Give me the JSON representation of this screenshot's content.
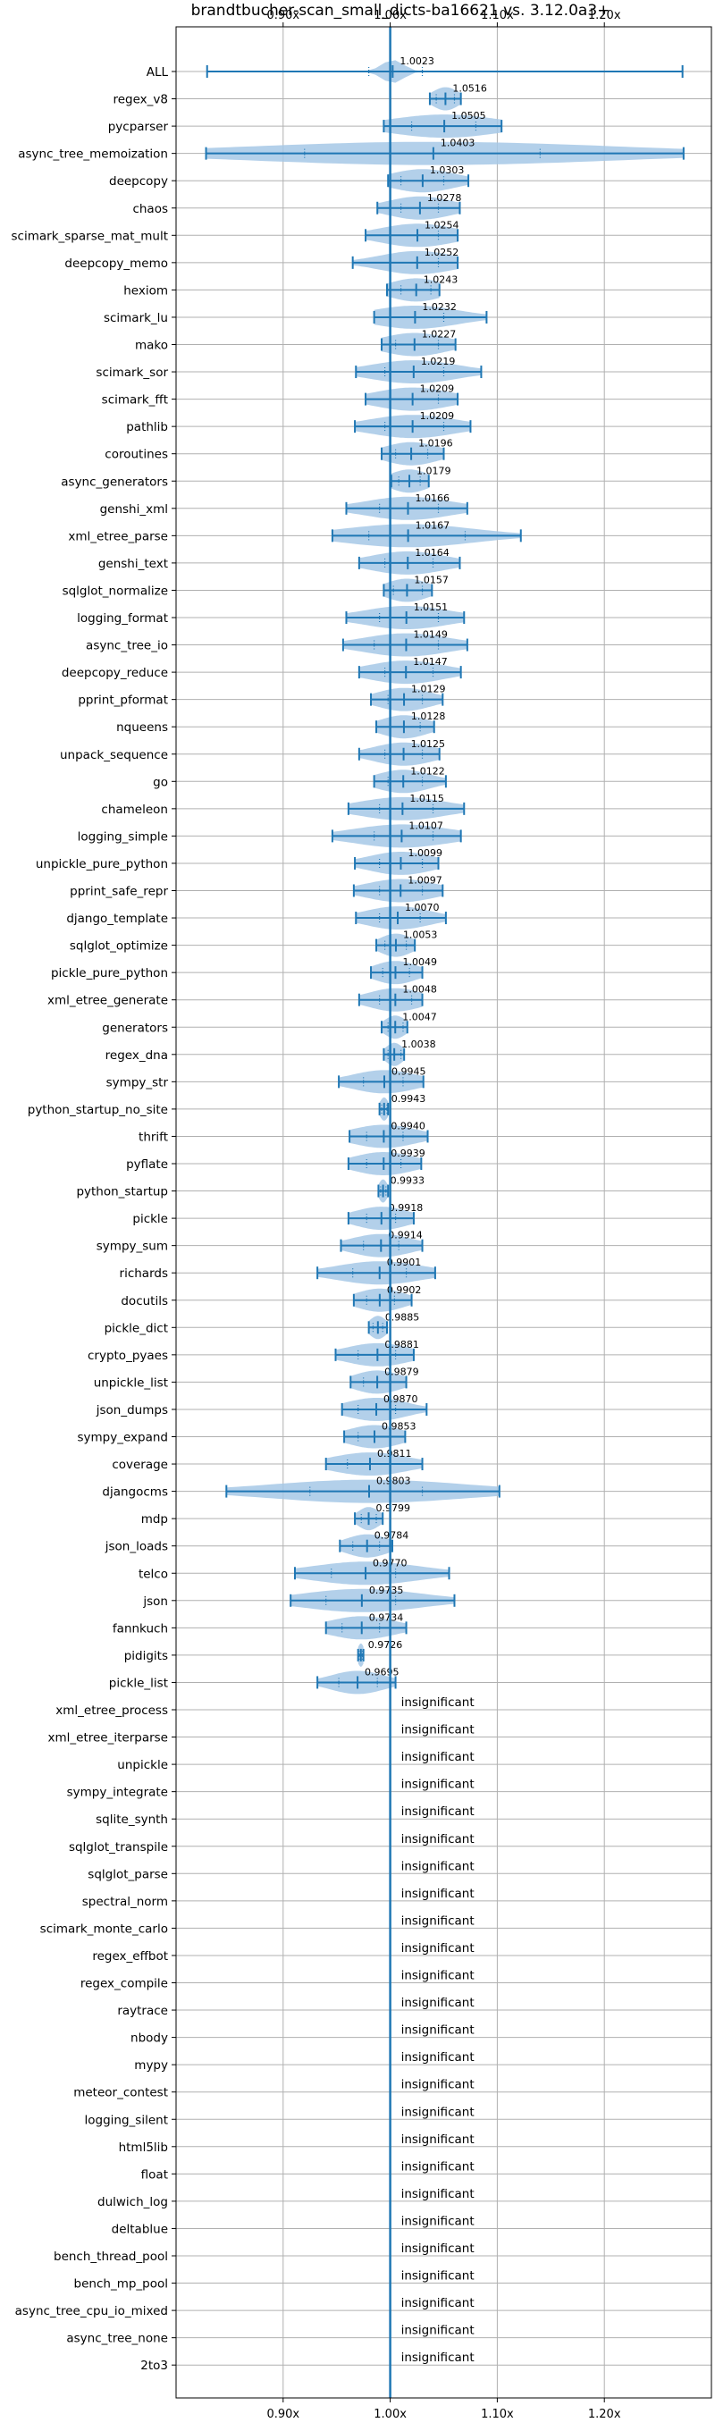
{
  "chart_data": {
    "type": "violin",
    "title": "brandtbucher-scan_small_dicts-ba16621 vs. 3.12.0a3+",
    "xlim": [
      0.8,
      1.3
    ],
    "xticks": [
      {
        "value": 0.9,
        "label": "0.90x"
      },
      {
        "value": 1.0,
        "label": "1.00x"
      },
      {
        "value": 1.1,
        "label": "1.10x"
      },
      {
        "value": 1.2,
        "label": "1.20x"
      }
    ],
    "grid": true,
    "reference_line": 1.0,
    "colors": {
      "line": "#1f77b4",
      "fill": "#a6c8e6",
      "grid": "#b0b0b0"
    },
    "insignificant_text": "insignificant",
    "benchmarks": [
      {
        "name": "ALL",
        "label": "1.0023",
        "mean": 1.0023,
        "min": 0.829,
        "max": 1.273,
        "q1": 0.98,
        "q3": 1.03,
        "spread": 0.01
      },
      {
        "name": "regex_v8",
        "label": "1.0516",
        "mean": 1.0516,
        "min": 1.037,
        "max": 1.066,
        "q1": 1.043,
        "q3": 1.06,
        "spread": 0.012
      },
      {
        "name": "pycparser",
        "label": "1.0505",
        "mean": 1.0505,
        "min": 0.994,
        "max": 1.104,
        "q1": 1.02,
        "q3": 1.08,
        "spread": 0.05
      },
      {
        "name": "async_tree_memoization",
        "label": "1.0403",
        "mean": 1.0403,
        "min": 0.828,
        "max": 1.274,
        "q1": 0.92,
        "q3": 1.14,
        "spread": 0.17
      },
      {
        "name": "deepcopy",
        "label": "1.0303",
        "mean": 1.0303,
        "min": 0.998,
        "max": 1.073,
        "q1": 1.01,
        "q3": 1.05,
        "spread": 0.03
      },
      {
        "name": "chaos",
        "label": "1.0278",
        "mean": 1.0278,
        "min": 0.988,
        "max": 1.065,
        "q1": 1.01,
        "q3": 1.045,
        "spread": 0.03
      },
      {
        "name": "scimark_sparse_mat_mult",
        "label": "1.0254",
        "mean": 1.0254,
        "min": 0.977,
        "max": 1.063,
        "q1": 1.0,
        "q3": 1.045,
        "spread": 0.035
      },
      {
        "name": "deepcopy_memo",
        "label": "1.0252",
        "mean": 1.0252,
        "min": 0.965,
        "max": 1.063,
        "q1": 1.0,
        "q3": 1.045,
        "spread": 0.035
      },
      {
        "name": "hexiom",
        "label": "1.0243",
        "mean": 1.0243,
        "min": 0.997,
        "max": 1.046,
        "q1": 1.01,
        "q3": 1.038,
        "spread": 0.025
      },
      {
        "name": "scimark_lu",
        "label": "1.0232",
        "mean": 1.0232,
        "min": 0.985,
        "max": 1.09,
        "q1": 1.0,
        "q3": 1.05,
        "spread": 0.04
      },
      {
        "name": "mako",
        "label": "1.0227",
        "mean": 1.0227,
        "min": 0.992,
        "max": 1.061,
        "q1": 1.005,
        "q3": 1.045,
        "spread": 0.03
      },
      {
        "name": "scimark_sor",
        "label": "1.0219",
        "mean": 1.0219,
        "min": 0.968,
        "max": 1.085,
        "q1": 0.995,
        "q3": 1.05,
        "spread": 0.04
      },
      {
        "name": "scimark_fft",
        "label": "1.0209",
        "mean": 1.0209,
        "min": 0.977,
        "max": 1.063,
        "q1": 1.0,
        "q3": 1.045,
        "spread": 0.035
      },
      {
        "name": "pathlib",
        "label": "1.0209",
        "mean": 1.0209,
        "min": 0.967,
        "max": 1.075,
        "q1": 0.995,
        "q3": 1.05,
        "spread": 0.04
      },
      {
        "name": "coroutines",
        "label": "1.0196",
        "mean": 1.0196,
        "min": 0.992,
        "max": 1.05,
        "q1": 1.005,
        "q3": 1.035,
        "spread": 0.025
      },
      {
        "name": "async_generators",
        "label": "1.0179",
        "mean": 1.0179,
        "min": 1.001,
        "max": 1.036,
        "q1": 1.008,
        "q3": 1.028,
        "spread": 0.018
      },
      {
        "name": "genshi_xml",
        "label": "1.0166",
        "mean": 1.0166,
        "min": 0.959,
        "max": 1.072,
        "q1": 0.99,
        "q3": 1.045,
        "spread": 0.04
      },
      {
        "name": "xml_etree_parse",
        "label": "1.0167",
        "mean": 1.0167,
        "min": 0.946,
        "max": 1.122,
        "q1": 0.98,
        "q3": 1.07,
        "spread": 0.06
      },
      {
        "name": "genshi_text",
        "label": "1.0164",
        "mean": 1.0164,
        "min": 0.971,
        "max": 1.065,
        "q1": 0.995,
        "q3": 1.04,
        "spread": 0.035
      },
      {
        "name": "sqlglot_normalize",
        "label": "1.0157",
        "mean": 1.0157,
        "min": 0.994,
        "max": 1.039,
        "q1": 1.003,
        "q3": 1.03,
        "spread": 0.02
      },
      {
        "name": "logging_format",
        "label": "1.0151",
        "mean": 1.0151,
        "min": 0.959,
        "max": 1.069,
        "q1": 0.99,
        "q3": 1.045,
        "spread": 0.04
      },
      {
        "name": "async_tree_io",
        "label": "1.0149",
        "mean": 1.0149,
        "min": 0.956,
        "max": 1.072,
        "q1": 0.985,
        "q3": 1.045,
        "spread": 0.04
      },
      {
        "name": "deepcopy_reduce",
        "label": "1.0147",
        "mean": 1.0147,
        "min": 0.971,
        "max": 1.066,
        "q1": 0.995,
        "q3": 1.04,
        "spread": 0.035
      },
      {
        "name": "pprint_pformat",
        "label": "1.0129",
        "mean": 1.0129,
        "min": 0.982,
        "max": 1.049,
        "q1": 0.998,
        "q3": 1.03,
        "spread": 0.025
      },
      {
        "name": "nqueens",
        "label": "1.0128",
        "mean": 1.0128,
        "min": 0.987,
        "max": 1.041,
        "q1": 1.0,
        "q3": 1.028,
        "spread": 0.022
      },
      {
        "name": "unpack_sequence",
        "label": "1.0125",
        "mean": 1.0125,
        "min": 0.971,
        "max": 1.046,
        "q1": 0.995,
        "q3": 1.03,
        "spread": 0.028
      },
      {
        "name": "go",
        "label": "1.0122",
        "mean": 1.0122,
        "min": 0.985,
        "max": 1.052,
        "q1": 0.998,
        "q3": 1.03,
        "spread": 0.025
      },
      {
        "name": "chameleon",
        "label": "1.0115",
        "mean": 1.0115,
        "min": 0.961,
        "max": 1.069,
        "q1": 0.99,
        "q3": 1.04,
        "spread": 0.04
      },
      {
        "name": "logging_simple",
        "label": "1.0107",
        "mean": 1.0107,
        "min": 0.946,
        "max": 1.066,
        "q1": 0.985,
        "q3": 1.04,
        "spread": 0.045
      },
      {
        "name": "unpickle_pure_python",
        "label": "1.0099",
        "mean": 1.0099,
        "min": 0.967,
        "max": 1.045,
        "q1": 0.99,
        "q3": 1.03,
        "spread": 0.03
      },
      {
        "name": "pprint_safe_repr",
        "label": "1.0097",
        "mean": 1.0097,
        "min": 0.966,
        "max": 1.049,
        "q1": 0.99,
        "q3": 1.03,
        "spread": 0.032
      },
      {
        "name": "django_template",
        "label": "1.0070",
        "mean": 1.007,
        "min": 0.968,
        "max": 1.052,
        "q1": 0.99,
        "q3": 1.028,
        "spread": 0.03
      },
      {
        "name": "sqlglot_optimize",
        "label": "1.0053",
        "mean": 1.0053,
        "min": 0.987,
        "max": 1.023,
        "q1": 0.995,
        "q3": 1.015,
        "spread": 0.015
      },
      {
        "name": "pickle_pure_python",
        "label": "1.0049",
        "mean": 1.0049,
        "min": 0.982,
        "max": 1.03,
        "q1": 0.993,
        "q3": 1.018,
        "spread": 0.02
      },
      {
        "name": "xml_etree_generate",
        "label": "1.0048",
        "mean": 1.0048,
        "min": 0.971,
        "max": 1.03,
        "q1": 0.99,
        "q3": 1.02,
        "spread": 0.025
      },
      {
        "name": "generators",
        "label": "1.0047",
        "mean": 1.0047,
        "min": 0.992,
        "max": 1.016,
        "q1": 0.998,
        "q3": 1.012,
        "spread": 0.01
      },
      {
        "name": "regex_dna",
        "label": "1.0038",
        "mean": 1.0038,
        "min": 0.994,
        "max": 1.013,
        "q1": 0.998,
        "q3": 1.01,
        "spread": 0.008
      },
      {
        "name": "sympy_str",
        "label": "0.9945",
        "mean": 0.9945,
        "min": 0.952,
        "max": 1.031,
        "q1": 0.975,
        "q3": 1.012,
        "spread": 0.03
      },
      {
        "name": "python_startup_no_site",
        "label": "0.9943",
        "mean": 0.9943,
        "min": 0.99,
        "max": 0.998,
        "q1": 0.992,
        "q3": 0.997,
        "spread": 0.004
      },
      {
        "name": "thrift",
        "label": "0.9940",
        "mean": 0.994,
        "min": 0.962,
        "max": 1.035,
        "q1": 0.978,
        "q3": 1.012,
        "spread": 0.03
      },
      {
        "name": "pyflate",
        "label": "0.9939",
        "mean": 0.9939,
        "min": 0.961,
        "max": 1.029,
        "q1": 0.978,
        "q3": 1.01,
        "spread": 0.028
      },
      {
        "name": "python_startup",
        "label": "0.9933",
        "mean": 0.9933,
        "min": 0.989,
        "max": 0.998,
        "q1": 0.991,
        "q3": 0.996,
        "spread": 0.004
      },
      {
        "name": "pickle",
        "label": "0.9918",
        "mean": 0.9918,
        "min": 0.961,
        "max": 1.022,
        "q1": 0.978,
        "q3": 1.005,
        "spread": 0.025
      },
      {
        "name": "sympy_sum",
        "label": "0.9914",
        "mean": 0.9914,
        "min": 0.954,
        "max": 1.03,
        "q1": 0.975,
        "q3": 1.008,
        "spread": 0.028
      },
      {
        "name": "richards",
        "label": "0.9901",
        "mean": 0.9901,
        "min": 0.932,
        "max": 1.042,
        "q1": 0.965,
        "q3": 1.015,
        "spread": 0.04
      },
      {
        "name": "docutils",
        "label": "0.9902",
        "mean": 0.9902,
        "min": 0.966,
        "max": 1.02,
        "q1": 0.978,
        "q3": 1.004,
        "spread": 0.022
      },
      {
        "name": "pickle_dict",
        "label": "0.9885",
        "mean": 0.9885,
        "min": 0.98,
        "max": 0.997,
        "q1": 0.984,
        "q3": 0.993,
        "spread": 0.008
      },
      {
        "name": "crypto_pyaes",
        "label": "0.9881",
        "mean": 0.9881,
        "min": 0.949,
        "max": 1.022,
        "q1": 0.97,
        "q3": 1.005,
        "spread": 0.03
      },
      {
        "name": "unpickle_list",
        "label": "0.9879",
        "mean": 0.9879,
        "min": 0.963,
        "max": 1.015,
        "q1": 0.975,
        "q3": 1.0,
        "spread": 0.022
      },
      {
        "name": "json_dumps",
        "label": "0.9870",
        "mean": 0.987,
        "min": 0.955,
        "max": 1.034,
        "q1": 0.97,
        "q3": 1.005,
        "spread": 0.028
      },
      {
        "name": "sympy_expand",
        "label": "0.9853",
        "mean": 0.9853,
        "min": 0.957,
        "max": 1.014,
        "q1": 0.97,
        "q3": 1.0,
        "spread": 0.025
      },
      {
        "name": "coverage",
        "label": "0.9811",
        "mean": 0.9811,
        "min": 0.94,
        "max": 1.03,
        "q1": 0.96,
        "q3": 1.0,
        "spread": 0.035
      },
      {
        "name": "djangocms",
        "label": "0.9803",
        "mean": 0.9803,
        "min": 0.847,
        "max": 1.102,
        "q1": 0.925,
        "q3": 1.03,
        "spread": 0.09
      },
      {
        "name": "mdp",
        "label": "0.9799",
        "mean": 0.9799,
        "min": 0.967,
        "max": 0.993,
        "q1": 0.973,
        "q3": 0.987,
        "spread": 0.01
      },
      {
        "name": "json_loads",
        "label": "0.9784",
        "mean": 0.9784,
        "min": 0.953,
        "max": 1.002,
        "q1": 0.965,
        "q3": 0.99,
        "spread": 0.02
      },
      {
        "name": "telco",
        "label": "0.9770",
        "mean": 0.977,
        "min": 0.911,
        "max": 1.055,
        "q1": 0.945,
        "q3": 1.005,
        "spread": 0.05
      },
      {
        "name": "json",
        "label": "0.9735",
        "mean": 0.9735,
        "min": 0.907,
        "max": 1.06,
        "q1": 0.94,
        "q3": 1.005,
        "spread": 0.055
      },
      {
        "name": "fannkuch",
        "label": "0.9734",
        "mean": 0.9734,
        "min": 0.94,
        "max": 1.015,
        "q1": 0.955,
        "q3": 0.99,
        "spread": 0.03
      },
      {
        "name": "pidigits",
        "label": "0.9726",
        "mean": 0.9726,
        "min": 0.97,
        "max": 0.975,
        "q1": 0.971,
        "q3": 0.974,
        "spread": 0.003
      },
      {
        "name": "pickle_list",
        "label": "0.9695",
        "mean": 0.9695,
        "min": 0.932,
        "max": 1.005,
        "q1": 0.952,
        "q3": 0.988,
        "spread": 0.025
      },
      {
        "name": "xml_etree_process",
        "insignificant": true
      },
      {
        "name": "xml_etree_iterparse",
        "insignificant": true
      },
      {
        "name": "unpickle",
        "insignificant": true
      },
      {
        "name": "sympy_integrate",
        "insignificant": true
      },
      {
        "name": "sqlite_synth",
        "insignificant": true
      },
      {
        "name": "sqlglot_transpile",
        "insignificant": true
      },
      {
        "name": "sqlglot_parse",
        "insignificant": true
      },
      {
        "name": "spectral_norm",
        "insignificant": true
      },
      {
        "name": "scimark_monte_carlo",
        "insignificant": true
      },
      {
        "name": "regex_effbot",
        "insignificant": true
      },
      {
        "name": "regex_compile",
        "insignificant": true
      },
      {
        "name": "raytrace",
        "insignificant": true
      },
      {
        "name": "nbody",
        "insignificant": true
      },
      {
        "name": "mypy",
        "insignificant": true
      },
      {
        "name": "meteor_contest",
        "insignificant": true
      },
      {
        "name": "logging_silent",
        "insignificant": true
      },
      {
        "name": "html5lib",
        "insignificant": true
      },
      {
        "name": "float",
        "insignificant": true
      },
      {
        "name": "dulwich_log",
        "insignificant": true
      },
      {
        "name": "deltablue",
        "insignificant": true
      },
      {
        "name": "bench_thread_pool",
        "insignificant": true
      },
      {
        "name": "bench_mp_pool",
        "insignificant": true
      },
      {
        "name": "async_tree_cpu_io_mixed",
        "insignificant": true
      },
      {
        "name": "async_tree_none",
        "insignificant": true
      },
      {
        "name": "2to3",
        "insignificant": true
      }
    ]
  }
}
